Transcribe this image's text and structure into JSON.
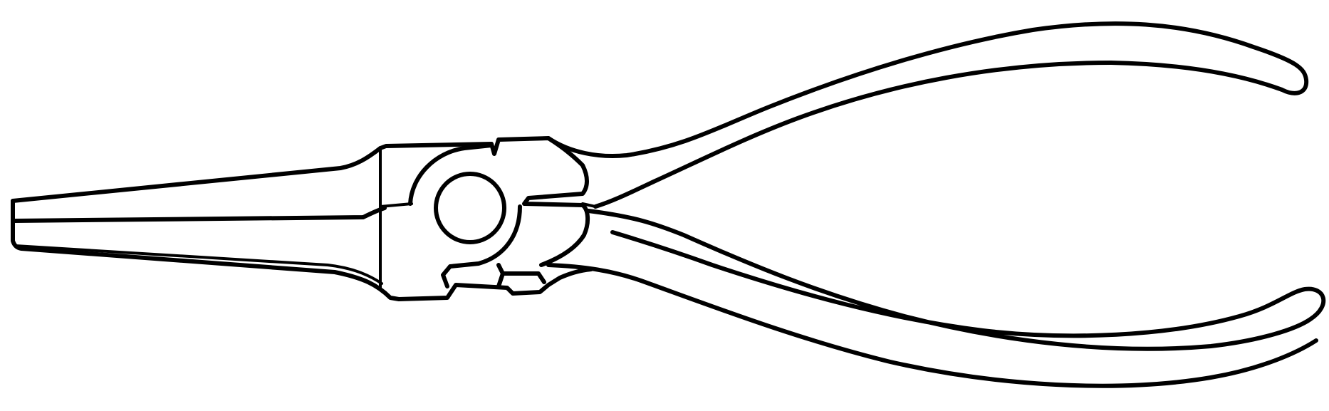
{
  "illustration": {
    "subject": "needle-nose-pliers",
    "style": "line-art",
    "colors": {
      "background": "#ffffff",
      "line": "#000000"
    }
  }
}
